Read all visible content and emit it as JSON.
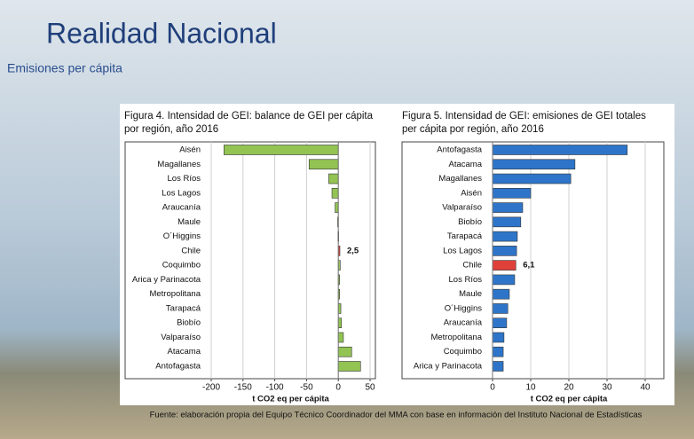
{
  "slide": {
    "title": "Realidad Nacional",
    "subtitle": "Emisiones per cápita",
    "source": "Fuente: elaboración propia del Equipo Técnico Coordinador del MMA con base en información del Instituto Nacional de Estadísticas"
  },
  "chart_data": [
    {
      "type": "hbar",
      "title": [
        "Figura 4. Intensidad de GEI: balance de GEI per cápita",
        "por región, año 2016"
      ],
      "categories": [
        "Aisén",
        "Magallanes",
        "Los Ríos",
        "Los Lagos",
        "Araucanía",
        "Maule",
        "O´Higgins",
        "Chile",
        "Coquimbo",
        "Arica y Parinacota",
        "Metropolitana",
        "Tarapacá",
        "Biobío",
        "Valparaíso",
        "Atacama",
        "Antofagasta"
      ],
      "values": [
        -180,
        -46,
        -15,
        -10,
        -5,
        -1,
        -0.5,
        2.5,
        3,
        2,
        2,
        4,
        5,
        8,
        21,
        35
      ],
      "value_labels": [
        null,
        null,
        null,
        null,
        null,
        null,
        null,
        "2,5",
        null,
        null,
        null,
        null,
        null,
        null,
        null,
        null
      ],
      "colors": [
        "#92c353",
        "#92c353",
        "#92c353",
        "#92c353",
        "#92c353",
        "#92c353",
        "#92c353",
        "#e0403a",
        "#92c353",
        "#92c353",
        "#92c353",
        "#92c353",
        "#92c353",
        "#92c353",
        "#92c353",
        "#92c353"
      ],
      "xlabel": "t CO2 eq per cápita",
      "xlim": [
        -200,
        50
      ],
      "xticks": [
        -200,
        -150,
        -100,
        -50,
        0,
        50
      ],
      "grid": true
    },
    {
      "type": "hbar",
      "title": [
        "Figura 5. Intensidad de GEI: emisiones de GEI totales",
        "per cápita por región, año 2016"
      ],
      "categories": [
        "Antofagasta",
        "Atacama",
        "Magallanes",
        "Aisén",
        "Valparaíso",
        "Biobío",
        "Tarapacá",
        "Los Lagos",
        "Chile",
        "Los Ríos",
        "Maule",
        "O´Higgins",
        "Araucanía",
        "Metropolitana",
        "Coquimbo",
        "Arica y Parinacota"
      ],
      "values": [
        35.3,
        21.6,
        20.5,
        10,
        7.9,
        7.4,
        6.5,
        6.3,
        6.1,
        5.8,
        4.4,
        4,
        3.7,
        3,
        2.8,
        2.8
      ],
      "value_labels": [
        null,
        null,
        null,
        null,
        null,
        null,
        null,
        null,
        "6,1",
        null,
        null,
        null,
        null,
        null,
        null,
        null
      ],
      "colors": [
        "#2e75c9",
        "#2e75c9",
        "#2e75c9",
        "#2e75c9",
        "#2e75c9",
        "#2e75c9",
        "#2e75c9",
        "#2e75c9",
        "#e0403a",
        "#2e75c9",
        "#2e75c9",
        "#2e75c9",
        "#2e75c9",
        "#2e75c9",
        "#2e75c9",
        "#2e75c9"
      ],
      "xlabel": "t CO2 eq per cápita",
      "xlim": [
        0,
        40
      ],
      "xticks": [
        0,
        10,
        20,
        30,
        40
      ],
      "grid": true
    }
  ]
}
